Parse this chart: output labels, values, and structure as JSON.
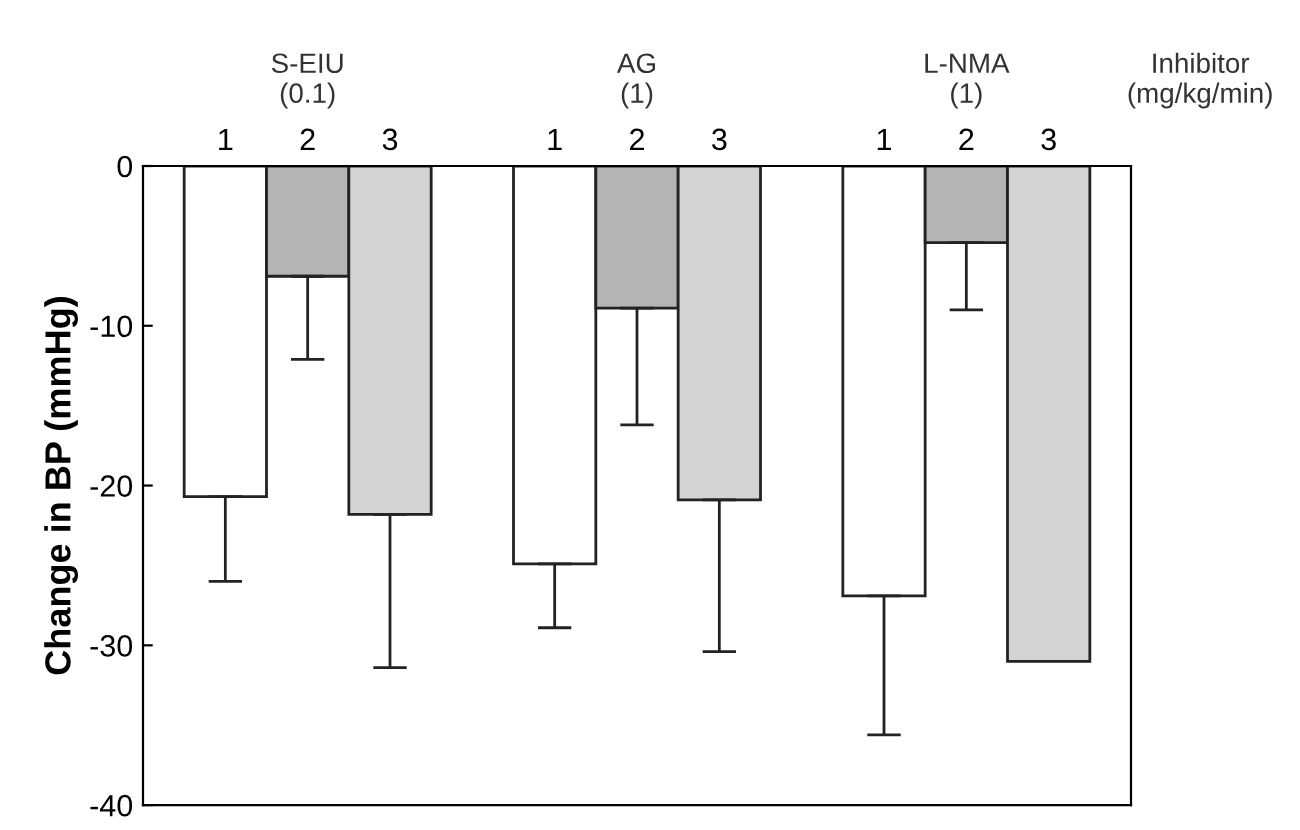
{
  "chart_data": {
    "type": "bar",
    "ylabel": "Change in BP (mmHg)",
    "categories": [
      "1",
      "2",
      "3",
      null,
      "1",
      "2",
      "3",
      null,
      "1",
      "2",
      "3"
    ],
    "values": [
      -20.7,
      -6.9,
      -21.8,
      null,
      -24.9,
      -8.9,
      -20.9,
      null,
      -26.9,
      -4.8,
      -31.0
    ],
    "colors": [
      "#ffffff",
      "#b4b4b4",
      "#d4d4d4",
      null,
      "#ffffff",
      "#b4b4b4",
      "#d4d4d4",
      null,
      "#ffffff",
      "#b4b4b4",
      "#d4d4d4"
    ],
    "errors": [
      [
        -26.0,
        -20.7
      ],
      [
        -12.1,
        -6.9
      ],
      [
        -31.4,
        -21.8
      ],
      null,
      [
        -28.9,
        -24.9
      ],
      [
        -16.2,
        -8.9
      ],
      [
        -30.4,
        -20.9
      ],
      null,
      [
        -35.6,
        -26.9
      ],
      [
        -9.0,
        -4.8
      ],
      null
    ],
    "annotations": [
      "S-EIU\n(0.1)",
      "AG\n(1)",
      "L-NMA\n(1)",
      "Inhibitor\n(mg/kg/min)"
    ],
    "ylim": [
      -40,
      0
    ],
    "yticks": [
      0,
      -10,
      -20,
      -30,
      -40
    ],
    "grid": false,
    "legend": false
  }
}
